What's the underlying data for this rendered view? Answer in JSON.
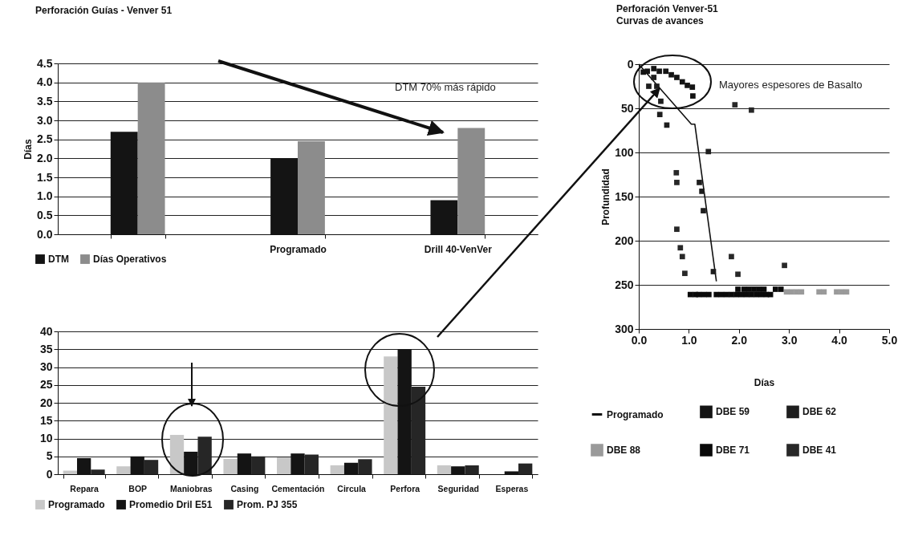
{
  "chart_data": [
    {
      "type": "bar",
      "title": "Perforación Guías - Venver 51",
      "ylabel": "Días",
      "categories": [
        null,
        "Programado",
        "Drill 40-VenVer"
      ],
      "series": [
        {
          "name": "DTM",
          "color": "#141414",
          "values": [
            2.7,
            2.0,
            0.9
          ]
        },
        {
          "name": "Días Operativos",
          "color": "#8c8c8c",
          "values": [
            4.0,
            2.45,
            2.8
          ]
        }
      ],
      "ylim": [
        0,
        4.5
      ],
      "yticks": [
        {
          "value": 0,
          "label": "0.0"
        },
        0.5,
        {
          "value": 1,
          "label": "1.0"
        },
        1.5,
        {
          "value": 2,
          "label": "2.0"
        },
        2.5,
        {
          "value": 3,
          "label": "3.0"
        },
        3.5,
        {
          "value": 4,
          "label": "4.0"
        },
        4.5
      ],
      "grid": "y",
      "legend": "bottom left",
      "annotations": [
        "DTM 70% más rápido"
      ]
    },
    {
      "type": "bar",
      "categories": [
        "Repara",
        "BOP",
        "Maniobras",
        "Casing",
        "Cementación",
        "Circula",
        "Perfora",
        "Seguridad",
        "Esperas"
      ],
      "series": [
        {
          "name": "Programado",
          "color": "#c8c8c8",
          "values": [
            1,
            2.2,
            11,
            4.3,
            4.7,
            2.5,
            33,
            2.5,
            null
          ]
        },
        {
          "name": "Promedio Dril E51",
          "color": "#141414",
          "values": [
            4.5,
            5,
            6.3,
            5.8,
            5.8,
            3.2,
            35,
            2.2,
            0.8
          ]
        },
        {
          "name": "Prom. PJ 355",
          "color": "#262626",
          "values": [
            1.3,
            4,
            10.5,
            5,
            5.5,
            4.2,
            24.5,
            2.5,
            3
          ]
        }
      ],
      "ylim": [
        0,
        40
      ],
      "yticks": [
        0,
        5,
        10,
        15,
        20,
        25,
        30,
        35,
        40
      ],
      "grid": "y",
      "legend": "bottom left"
    },
    {
      "type": "scatter",
      "title": "Perforación Venver-51",
      "subtitle": "Curvas de avances",
      "xlabel": "Días",
      "ylabel": "Profundidad",
      "marker": "square",
      "series": [
        {
          "name": "Programado",
          "type": "line",
          "marker": "none",
          "color": "#111111",
          "x": [
            0,
            1.05,
            1.12,
            1.55
          ],
          "values": [
            0,
            68,
            68,
            246
          ]
        },
        {
          "name": "DBE 88",
          "color": "#9a9a9a",
          "x": [
            2.95,
            3.05,
            3.15,
            3.25,
            3.6,
            3.7,
            3.95,
            4.05,
            4.15
          ],
          "values": [
            258,
            258,
            258,
            258,
            258,
            258,
            258,
            258,
            258
          ]
        },
        {
          "name": "DBE 59",
          "color": "#141414",
          "x": [
            0.09,
            0.17,
            0.3,
            0.41,
            0.54,
            0.65,
            0.76,
            0.87,
            0.97,
            1.07,
            1.08
          ],
          "values": [
            9,
            8,
            5,
            8,
            8,
            12,
            15,
            20,
            24,
            26,
            36
          ]
        },
        {
          "name": "DBE 71",
          "color": "#0a0a0a",
          "x": [
            1.03,
            1.13,
            1.2,
            1.3,
            1.4,
            1.55,
            1.65,
            1.75,
            1.85,
            1.95,
            2.05,
            2.15,
            2.25,
            2.35,
            2.45,
            2.55,
            2.63,
            1.98,
            2.1,
            2.2,
            2.3,
            2.4,
            2.5,
            2.73,
            2.84
          ],
          "values": [
            261,
            261,
            261,
            261,
            261,
            261,
            261,
            261,
            261,
            261,
            261,
            261,
            261,
            261,
            261,
            261,
            261,
            255,
            255,
            255,
            255,
            255,
            255,
            255,
            255
          ]
        },
        {
          "name": "DBE 62",
          "color": "#1e1e1e",
          "x": [
            0.2,
            0.3,
            0.36,
            0.44,
            0.42,
            0.56,
            1.39,
            1.21,
            1.26,
            1.29,
            1.49
          ],
          "values": [
            25,
            15,
            25,
            42,
            57,
            69,
            99,
            134,
            144,
            166,
            235
          ]
        },
        {
          "name": "DBE 41",
          "color": "#282828",
          "x": [
            0.75,
            0.76,
            0.76,
            0.83,
            0.87,
            0.92,
            1.85,
            1.98,
            2.91,
            1.92,
            2.25
          ],
          "values": [
            123,
            134,
            187,
            208,
            218,
            237,
            218,
            238,
            228,
            46,
            52
          ]
        }
      ],
      "xlim": [
        0,
        5
      ],
      "xticks": [
        {
          "value": 0,
          "label": "0.0"
        },
        {
          "value": 1,
          "label": "1.0"
        },
        {
          "value": 2,
          "label": "2.0"
        },
        {
          "value": 3,
          "label": "3.0"
        },
        {
          "value": 4,
          "label": "4.0"
        },
        {
          "value": 5,
          "label": "5.0"
        }
      ],
      "ylim": [
        300,
        0
      ],
      "yticks": [
        0,
        50,
        100,
        150,
        200,
        250,
        300
      ],
      "grid": "y",
      "legend": "bottom",
      "annotations": [
        "Mayores espesores de Basalto"
      ]
    }
  ]
}
